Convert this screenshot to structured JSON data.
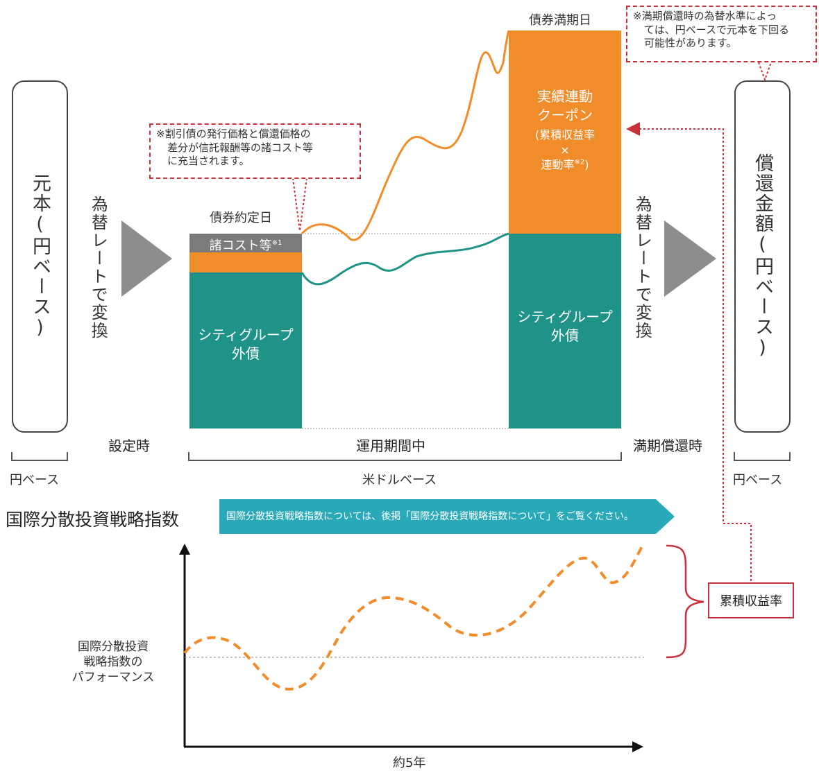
{
  "left_box": {
    "label": "元本(円ベース)"
  },
  "right_box": {
    "label": "償還金額(円ベース)"
  },
  "rate_left": "為替レートで変換",
  "rate_right": "為替レートで変換",
  "stages": {
    "setup": "設定時",
    "during": "運用期間中",
    "maturity": "満期償還時"
  },
  "bases": {
    "yen_left": "円ベース",
    "usd": "米ドルベース",
    "yen_right": "円ベース"
  },
  "dates": {
    "contract": "債券約定日",
    "maturity": "債券満期日"
  },
  "left_bar": {
    "cost_label": "諸コスト等",
    "cost_sup": "※1",
    "bond_line1": "シティグループ",
    "bond_line2": "外債"
  },
  "right_bar": {
    "coupon_line1": "実績連動",
    "coupon_line2": "クーポン",
    "formula_line1": "(累積収益率",
    "formula_times": "×",
    "formula_line2": "連動率",
    "formula_sup": "※2",
    "formula_close": ")",
    "bond_line1": "シティグループ",
    "bond_line2": "外債"
  },
  "note_left": {
    "line1": "※割引債の発行価格と償還価格の",
    "line2": "差分が信託報酬等の諸コスト等",
    "line3": "に充当されます。"
  },
  "note_right": {
    "line1": "※満期償還時の為替水準によっ",
    "line2": "ては、円ベースで元本を下回る",
    "line3": "可能性があります。"
  },
  "index_title": "国際分散投資戦略指数",
  "index_banner": "国際分散投資戦略指数については、後掲「国際分散投資戦略指数について」をご覧ください。",
  "chart_ylabel": {
    "line1": "国際分散投資",
    "line2": "戦略指数の",
    "line3": "パフォーマンス"
  },
  "chart_xlabel": "約5年",
  "cumulative_label": "累積収益率",
  "colors": {
    "orange": "#f18c2a",
    "teal": "#1f9387",
    "gray": "#7b7b7b",
    "red": "#c8303c",
    "banner": "#2aaab8"
  }
}
